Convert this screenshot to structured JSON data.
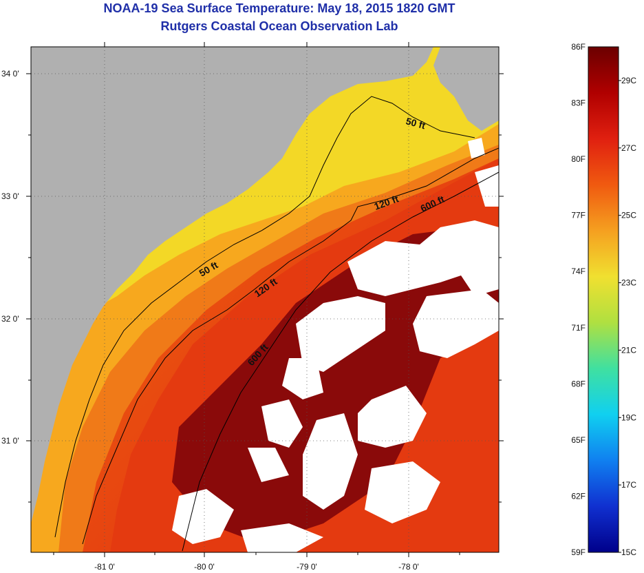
{
  "header": {
    "title": "NOAA-19 Sea Surface Temperature:  May 18, 2015 1820 GMT",
    "subtitle": "Rutgers Coastal Ocean Observation Lab"
  },
  "map": {
    "lat_labels": [
      "34 0'",
      "33 0'",
      "32 0'",
      "31 0'"
    ],
    "lon_labels": [
      "-81 0'",
      "-80 0'",
      "-79 0'",
      "-78 0'"
    ],
    "contour_labels": [
      {
        "text": "50 ft",
        "isobath": 50
      },
      {
        "text": "50 ft",
        "isobath": 50
      },
      {
        "text": "120 ft",
        "isobath": 120
      },
      {
        "text": "120 ft",
        "isobath": 120
      },
      {
        "text": "600 ft",
        "isobath": 600
      },
      {
        "text": "600 ft",
        "isobath": 600
      }
    ],
    "colors": {
      "land": "#b0b0b0",
      "cloud": "#ffffff",
      "warm_core": "#8a0a0a",
      "shelf": "#e43a10",
      "nearshore": "#f7b21e",
      "coastal_yellow": "#f3e326"
    }
  },
  "colorbar": {
    "fahrenheit_labels": [
      "86F",
      "83F",
      "80F",
      "77F",
      "74F",
      "71F",
      "68F",
      "65F",
      "62F",
      "59F"
    ],
    "celsius_labels": [
      "29C",
      "27C",
      "25C",
      "23C",
      "21C",
      "19C",
      "17C",
      "15C"
    ],
    "range_f": [
      59,
      86
    ],
    "range_c": [
      15,
      30
    ],
    "gradient_stops": [
      "#6b0000",
      "#b00000",
      "#e02010",
      "#f05a10",
      "#f5a020",
      "#f0e030",
      "#b0e040",
      "#40e0a0",
      "#10d0f0",
      "#1080f0",
      "#1030d0",
      "#00008a"
    ]
  }
}
